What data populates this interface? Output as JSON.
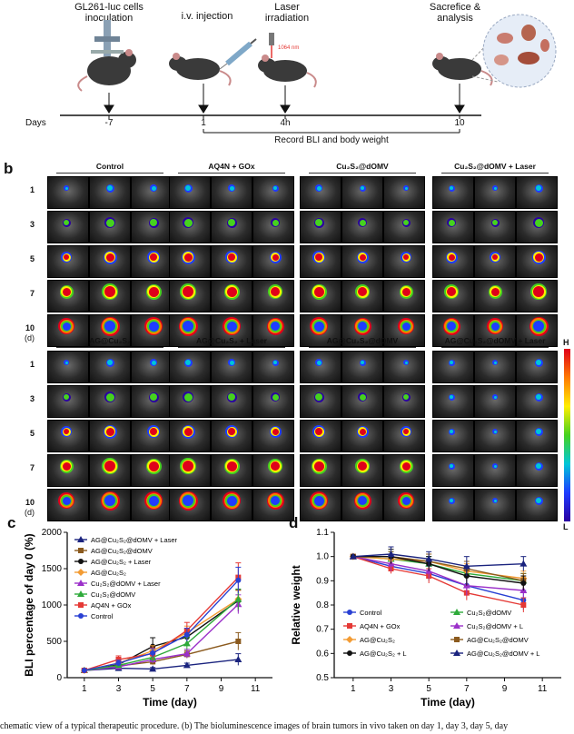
{
  "panel_a": {
    "steps": [
      {
        "title": "GL261-luc cells\ninoculation",
        "tick": "-7"
      },
      {
        "title": "i.v. injection",
        "tick": "1"
      },
      {
        "title": "Laser\nirradiation",
        "tick": "4h",
        "sub": "1064 nm"
      },
      {
        "title": "Sacrefice &\nanalysis",
        "tick": "10"
      }
    ],
    "days_label": "Days",
    "record_label": "Record BLI and body weight"
  },
  "panel_b": {
    "letter": "b",
    "rows": [
      "1",
      "3",
      "5",
      "7",
      "10"
    ],
    "row_unit": "(d)",
    "groups_top": [
      "Control",
      "AQ4N + GOx",
      "Cu₂S₂@dOMV",
      "Cu₂S₂@dOMV + Laser"
    ],
    "groups_bottom": [
      "AG@Cu₂S₂",
      "AG@Cu₂S₂ + Laser",
      "AG@Cu₂S₂@dOMV",
      "AG@Cu₂S₂@dOMV + Laser"
    ],
    "scale_high": "H",
    "scale_low": "L"
  },
  "chart_data": [
    {
      "type": "line",
      "panel": "c",
      "xlabel": "Time (day)",
      "ylabel": "BLI percentage of day 0 (%)",
      "x": [
        1,
        3,
        5,
        7,
        10
      ],
      "xlim": [
        0,
        12
      ],
      "ylim": [
        0,
        2000
      ],
      "xticks": [
        "1",
        "3",
        "5",
        "7",
        "9",
        "11"
      ],
      "yticks": [
        "0",
        "500",
        "1000",
        "1500",
        "2000"
      ],
      "legend": "top-left",
      "series": [
        {
          "name": "AG@Cu₂S₂@dOMV + Laser",
          "color": "#1a237e",
          "marker": "triangle",
          "values": [
            100,
            130,
            120,
            170,
            250
          ],
          "err": [
            0,
            20,
            20,
            30,
            80
          ]
        },
        {
          "name": "AG@Cu₂S₂@dOMV",
          "color": "#8b5a1e",
          "marker": "square",
          "values": [
            100,
            160,
            220,
            320,
            500
          ],
          "err": [
            0,
            30,
            40,
            50,
            120
          ]
        },
        {
          "name": "AG@Cu₂S₂ + Laser",
          "color": "#111111",
          "marker": "circle",
          "values": [
            100,
            180,
            430,
            560,
            1060
          ],
          "err": [
            0,
            40,
            120,
            100,
            150
          ]
        },
        {
          "name": "AG@Cu₂S₂",
          "color": "#f39c34",
          "marker": "diamond",
          "values": [
            100,
            200,
            370,
            620,
            1080
          ],
          "err": [
            0,
            40,
            70,
            90,
            120
          ]
        },
        {
          "name": "Cu₂S₂@dOMV + Laser",
          "color": "#9b30c9",
          "marker": "triangle",
          "values": [
            100,
            150,
            250,
            330,
            1010
          ],
          "err": [
            0,
            30,
            50,
            60,
            130
          ]
        },
        {
          "name": "Cu₂S₂@dOMV",
          "color": "#2eaa3a",
          "marker": "triangle",
          "values": [
            100,
            170,
            280,
            470,
            1080
          ],
          "err": [
            0,
            30,
            60,
            80,
            140
          ]
        },
        {
          "name": "AQ4N + GOx",
          "color": "#e53935",
          "marker": "square",
          "values": [
            100,
            250,
            330,
            650,
            1380
          ],
          "err": [
            0,
            50,
            80,
            110,
            200
          ]
        },
        {
          "name": "Control",
          "color": "#2940d3",
          "marker": "circle",
          "values": [
            100,
            200,
            340,
            590,
            1340
          ],
          "err": [
            0,
            40,
            60,
            90,
            180
          ]
        }
      ]
    },
    {
      "type": "line",
      "panel": "d",
      "xlabel": "Time (day)",
      "ylabel": "Relative weight",
      "x": [
        1,
        3,
        5,
        7,
        10
      ],
      "xlim": [
        0,
        12
      ],
      "ylim": [
        0.5,
        1.1
      ],
      "xticks": [
        "1",
        "3",
        "5",
        "7",
        "9",
        "11"
      ],
      "yticks": [
        "0.5",
        "0.6",
        "0.7",
        "0.8",
        "0.9",
        "1.0",
        "1.1"
      ],
      "legend": "bottom",
      "series": [
        {
          "name": "Control",
          "color": "#2940d3",
          "marker": "circle",
          "values": [
            1.0,
            0.96,
            0.93,
            0.88,
            0.82
          ],
          "err": [
            0,
            0.02,
            0.03,
            0.04,
            0.04
          ]
        },
        {
          "name": "Cu₂S₂@dOMV",
          "color": "#2eaa3a",
          "marker": "triangle",
          "values": [
            1.0,
            0.99,
            0.97,
            0.93,
            0.9
          ],
          "err": [
            0,
            0.03,
            0.03,
            0.03,
            0.03
          ]
        },
        {
          "name": "AQ4N + GOx",
          "color": "#e53935",
          "marker": "square",
          "values": [
            1.0,
            0.95,
            0.92,
            0.85,
            0.8
          ],
          "err": [
            0,
            0.02,
            0.03,
            0.03,
            0.03
          ]
        },
        {
          "name": "Cu₂S₂@dOMV + L",
          "color": "#9b30c9",
          "marker": "triangle",
          "values": [
            1.0,
            0.97,
            0.94,
            0.88,
            0.86
          ],
          "err": [
            0,
            0.03,
            0.03,
            0.04,
            0.03
          ]
        },
        {
          "name": "AG@Cu₂S₂",
          "color": "#f39c34",
          "marker": "diamond",
          "values": [
            1.0,
            0.99,
            0.98,
            0.94,
            0.91
          ],
          "err": [
            0,
            0.02,
            0.03,
            0.03,
            0.03
          ]
        },
        {
          "name": "AG@Cu₂S₂@dOMV",
          "color": "#8b5a1e",
          "marker": "square",
          "values": [
            1.0,
            1.0,
            0.98,
            0.95,
            0.9
          ],
          "err": [
            0,
            0.02,
            0.03,
            0.03,
            0.03
          ]
        },
        {
          "name": "AG@Cu₂S₂ + L",
          "color": "#111111",
          "marker": "circle",
          "values": [
            1.0,
            1.0,
            0.97,
            0.92,
            0.89
          ],
          "err": [
            0,
            0.03,
            0.03,
            0.04,
            0.03
          ]
        },
        {
          "name": "AG@Cu₂S₂@dOMV + L",
          "color": "#1a237e",
          "marker": "triangle",
          "values": [
            1.0,
            1.01,
            0.99,
            0.96,
            0.97
          ],
          "err": [
            0,
            0.03,
            0.03,
            0.04,
            0.03
          ]
        }
      ]
    }
  ],
  "caption": "chematic view of a typical therapeutic procedure. (b) The bioluminescence images of brain tumors in vivo taken on day 1, day 3, day 5, day"
}
